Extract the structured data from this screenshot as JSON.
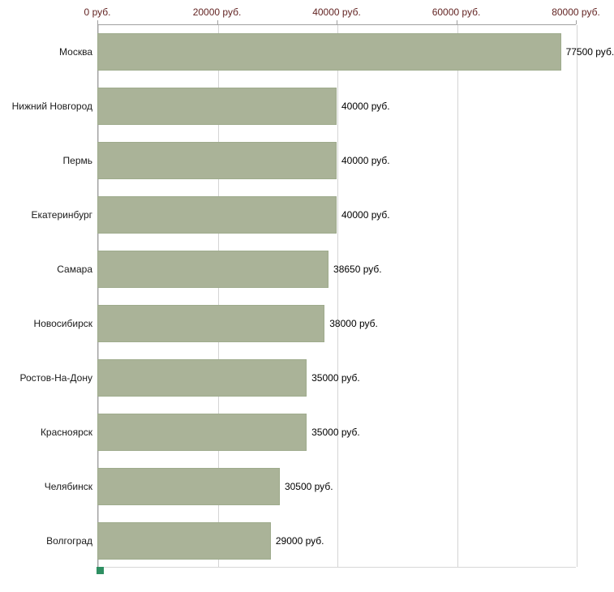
{
  "chart_data": {
    "type": "bar",
    "orientation": "horizontal",
    "title": "",
    "xlabel": "",
    "ylabel": "",
    "categories": [
      "Москва",
      "Нижний Новгород",
      "Пермь",
      "Екатеринбург",
      "Самара",
      "Новосибирск",
      "Ростов-На-Дону",
      "Красноярск",
      "Челябинск",
      "Волгоград"
    ],
    "values": [
      77500,
      40000,
      40000,
      40000,
      38650,
      38000,
      35000,
      35000,
      30500,
      29000
    ],
    "value_labels": [
      "77500 руб.",
      "40000 руб.",
      "40000 руб.",
      "40000 руб.",
      "38650 руб.",
      "38000 руб.",
      "35000 руб.",
      "35000 руб.",
      "30500 руб.",
      "29000 руб."
    ],
    "x_ticks": [
      0,
      20000,
      40000,
      60000,
      80000
    ],
    "x_tick_labels": [
      "0 руб.",
      "20000 руб.",
      "40000 руб.",
      "60000 руб.",
      "80000 руб."
    ],
    "xlim": [
      0,
      80000
    ],
    "axis_position": "top",
    "grid": true,
    "legend": false,
    "bar_color": "#aab398",
    "bar_border_color": "#9eab8c",
    "tick_label_color": "#632423",
    "category_label_color": "#1a1a1a",
    "value_label_color": "#000000",
    "axis_line_color": "#a0a0a0",
    "gridline_color": "#d4d4d4",
    "background_color": "#ffffff"
  }
}
